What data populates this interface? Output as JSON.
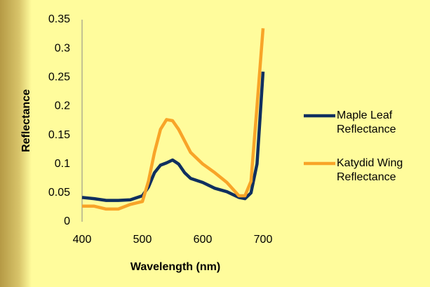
{
  "chart_data": {
    "type": "line",
    "x_label": "Wavelength (nm)",
    "y_label": "Reflectance",
    "xlim": [
      400,
      700
    ],
    "xticks": [
      400,
      500,
      600,
      700
    ],
    "ylim": [
      0,
      0.35
    ],
    "yticks": [
      0,
      0.05,
      0.1,
      0.15,
      0.2,
      0.25,
      0.3,
      0.35
    ],
    "grid": false,
    "legend": "right",
    "series": [
      {
        "name": "Maple Leaf Reflectance",
        "color": "#0f2f5f",
        "x": [
          400,
          420,
          440,
          460,
          480,
          500,
          510,
          520,
          530,
          540,
          550,
          560,
          570,
          580,
          600,
          620,
          640,
          660,
          670,
          680,
          690,
          700
        ],
        "values": [
          0.042,
          0.04,
          0.037,
          0.037,
          0.038,
          0.045,
          0.06,
          0.085,
          0.098,
          0.102,
          0.107,
          0.1,
          0.085,
          0.075,
          0.068,
          0.058,
          0.052,
          0.042,
          0.04,
          0.05,
          0.1,
          0.26
        ]
      },
      {
        "name": "Katydid Wing Reflectance",
        "color": "#f8a428",
        "x": [
          400,
          420,
          440,
          460,
          480,
          500,
          510,
          520,
          530,
          540,
          550,
          560,
          570,
          580,
          600,
          620,
          640,
          660,
          670,
          680,
          690,
          700
        ],
        "values": [
          0.027,
          0.027,
          0.022,
          0.022,
          0.03,
          0.035,
          0.07,
          0.12,
          0.16,
          0.177,
          0.175,
          0.16,
          0.14,
          0.12,
          0.1,
          0.085,
          0.068,
          0.045,
          0.045,
          0.07,
          0.2,
          0.335
        ]
      }
    ]
  }
}
